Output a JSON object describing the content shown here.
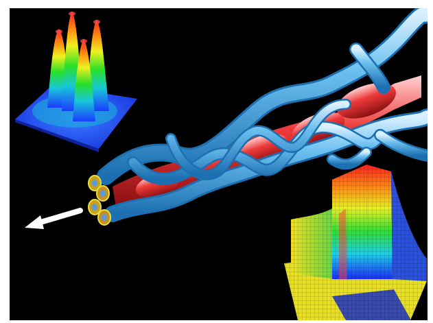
{
  "figure": {
    "background": "#000000",
    "frame_color": "#ffffff",
    "palette": {
      "tube_blue": "#5ab4e6",
      "tube_red": "#e23a3a",
      "arrow": "#ffffff",
      "surface_low": "#1a3cff",
      "surface_high": "#ff1e1e"
    },
    "icons": [
      "arrow-left-icon"
    ],
    "insets": [
      "four-peak-intensity-surface",
      "phase-singularity-surface"
    ]
  }
}
